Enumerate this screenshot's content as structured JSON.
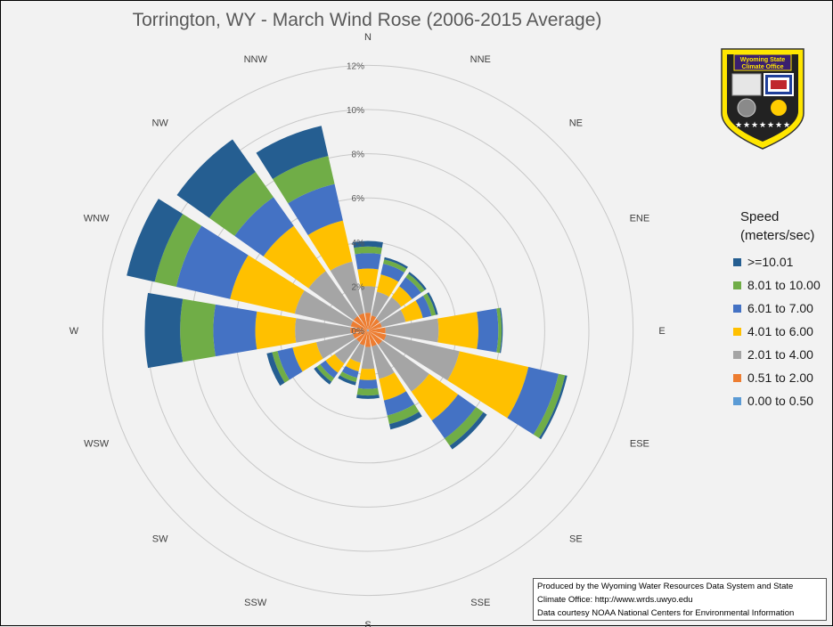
{
  "chart_data": {
    "type": "wind-rose",
    "title": "Torrington, WY - March Wind Rose (2006-2015 Average)",
    "directions": [
      "N",
      "NNE",
      "NE",
      "ENE",
      "E",
      "ESE",
      "SE",
      "SSE",
      "S",
      "SSW",
      "SW",
      "WSW",
      "W",
      "WNW",
      "NW",
      "NNW"
    ],
    "radial_ticks": [
      "0%",
      "2%",
      "4%",
      "6%",
      "8%",
      "10%",
      "12%"
    ],
    "radial_max": 12,
    "legend_title": [
      "Speed",
      "(meters/sec)"
    ],
    "series": [
      {
        "name": "0.00 to 0.50",
        "color": "#5b9bd5",
        "values": [
          0.05,
          0.05,
          0.05,
          0.05,
          0.05,
          0.05,
          0.05,
          0.05,
          0.05,
          0.05,
          0.05,
          0.05,
          0.05,
          0.05,
          0.05,
          0.05
        ]
      },
      {
        "name": "0.51 to 2.00",
        "color": "#ed7d31",
        "values": [
          0.75,
          0.65,
          0.6,
          0.6,
          0.75,
          0.8,
          0.75,
          0.7,
          0.7,
          0.65,
          0.6,
          0.65,
          0.75,
          0.75,
          0.75,
          0.75
        ]
      },
      {
        "name": "2.01 to 4.00",
        "color": "#a5a5a5",
        "values": [
          1.2,
          1.1,
          1.2,
          1.1,
          2.4,
          3.4,
          2.6,
          1.5,
          1.0,
          0.8,
          1.2,
          1.7,
          2.5,
          2.6,
          2.5,
          2.4
        ]
      },
      {
        "name": "4.01 to 6.00",
        "color": "#ffc000",
        "values": [
          0.8,
          0.8,
          0.6,
          0.8,
          1.8,
          3.2,
          1.6,
          1.0,
          0.5,
          0.4,
          0.5,
          1.1,
          1.8,
          3.0,
          2.5,
          1.9
        ]
      },
      {
        "name": "6.01 to 7.00",
        "color": "#4472c4",
        "values": [
          0.7,
          0.5,
          0.5,
          0.4,
          0.9,
          1.4,
          1.0,
          0.7,
          0.4,
          0.3,
          0.3,
          0.7,
          1.9,
          2.5,
          1.6,
          1.7
        ]
      },
      {
        "name": "8.01 to 10.00",
        "color": "#70ad47",
        "values": [
          0.3,
          0.2,
          0.2,
          0.2,
          0.15,
          0.3,
          0.4,
          0.4,
          0.3,
          0.2,
          0.2,
          0.25,
          1.5,
          1.0,
          1.4,
          1.3
        ]
      },
      {
        "name": ">=10.01",
        "color": "#255e91",
        "values": [
          0.25,
          0.1,
          0.1,
          0.1,
          0.05,
          0.1,
          0.2,
          0.25,
          0.15,
          0.15,
          0.15,
          0.25,
          1.6,
          1.3,
          1.8,
          1.4
        ]
      }
    ]
  },
  "credit": {
    "line1": "Produced by the Wyoming Water Resources Data System and State",
    "line2": "Climate Office: http://www.wrds.uwyo.edu",
    "line3": "Data courtesy NOAA National Centers for Environmental Information"
  },
  "logo": {
    "line1": "Wyoming State",
    "line2": "Climate Office",
    "colors": {
      "border": "#ffe600",
      "field": "#222222",
      "banner": "#3a1f6e",
      "flag": "#1f3f9a",
      "sun": "#ffcc00"
    }
  }
}
